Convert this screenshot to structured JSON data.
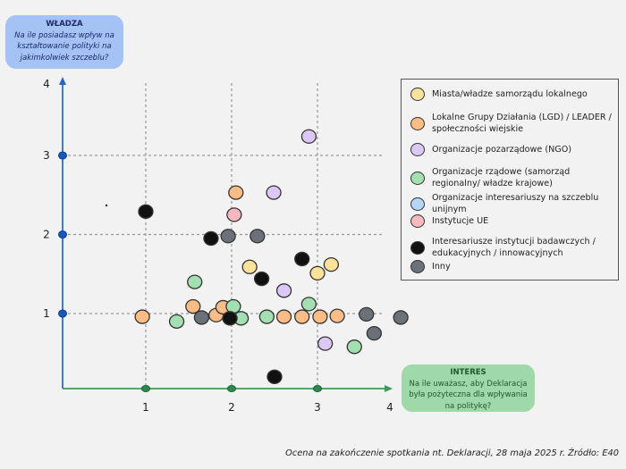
{
  "power_box": {
    "title": "WŁADZA",
    "question": "Na ile posiadasz wpływ na kształtowanie polityki na jakimkolwiek szczeblu?"
  },
  "interest_box": {
    "title": "INTERES",
    "question": "Na ile uważasz, aby Deklaracja była pożyteczna dla wpływania na politykę?"
  },
  "footer": "Ocena na zakończenie spotkania nt. Deklaracji, 28 maja 2025 r. Źródło: E40",
  "legend": [
    {
      "key": "miasta",
      "label": "Miasta/władze samorządu lokalnego",
      "color": "#ffe29a"
    },
    {
      "key": "lgd",
      "label": "Lokalne Grupy Działania (LGD) / LEADER / społeczności wiejskie",
      "color": "#fbbd85"
    },
    {
      "key": "ngo",
      "label": "Organizacje pozarządowe (NGO)",
      "color": "#dcc8f7"
    },
    {
      "key": "rzad",
      "label": "Organizacje rządowe (samorząd regionalny/ władze krajowe)",
      "color": "#a3dfb0"
    },
    {
      "key": "unijne",
      "label": "Organizacje interesariuszy na szczeblu unijnym",
      "color": "#b6d6f8"
    },
    {
      "key": "ue",
      "label": "Instytucje UE",
      "color": "#f7b8c0"
    },
    {
      "key": "badawcze",
      "label": "Interesariusze instytucji badawczych / edukacyjnych / innowacyjnych",
      "color": "#111111"
    },
    {
      "key": "inny",
      "label": "Inny",
      "color": "#6b7178"
    }
  ],
  "chart_data": {
    "type": "scatter",
    "title": "",
    "xlabel": "INTERES",
    "ylabel": "WŁADZA",
    "xlim": [
      0,
      4
    ],
    "ylim": [
      0,
      4
    ],
    "x_ticks": [
      "1",
      "2",
      "3",
      "4"
    ],
    "y_ticks": [
      "1",
      "2",
      "3",
      "4"
    ],
    "grid": "dashed at 1, 2, 3",
    "legend_position": "right",
    "axis_colors": {
      "x": "#3f9a57",
      "y": "#2e6fc2"
    },
    "points": [
      {
        "series": "miasta",
        "x": 2.21,
        "y": 1.59
      },
      {
        "series": "miasta",
        "x": 3.0,
        "y": 1.51
      },
      {
        "series": "miasta",
        "x": 3.16,
        "y": 1.62
      },
      {
        "series": "lgd",
        "x": 0.96,
        "y": 0.96
      },
      {
        "series": "lgd",
        "x": 2.05,
        "y": 2.53
      },
      {
        "series": "lgd",
        "x": 1.55,
        "y": 1.09
      },
      {
        "series": "lgd",
        "x": 1.82,
        "y": 0.98
      },
      {
        "series": "lgd",
        "x": 1.9,
        "y": 1.08
      },
      {
        "series": "lgd",
        "x": 2.61,
        "y": 0.96
      },
      {
        "series": "lgd",
        "x": 2.82,
        "y": 0.96
      },
      {
        "series": "lgd",
        "x": 3.03,
        "y": 0.96
      },
      {
        "series": "lgd",
        "x": 3.23,
        "y": 0.97
      },
      {
        "series": "ngo",
        "x": 2.9,
        "y": 3.24
      },
      {
        "series": "ngo",
        "x": 2.49,
        "y": 2.53
      },
      {
        "series": "ngo",
        "x": 2.61,
        "y": 1.29
      },
      {
        "series": "ngo",
        "x": 3.09,
        "y": 0.62
      },
      {
        "series": "rzad",
        "x": 1.36,
        "y": 0.9
      },
      {
        "series": "rzad",
        "x": 1.57,
        "y": 1.4
      },
      {
        "series": "rzad",
        "x": 2.02,
        "y": 1.09
      },
      {
        "series": "rzad",
        "x": 2.11,
        "y": 0.94
      },
      {
        "series": "rzad",
        "x": 2.41,
        "y": 0.96
      },
      {
        "series": "rzad",
        "x": 2.9,
        "y": 1.12
      },
      {
        "series": "rzad",
        "x": 3.43,
        "y": 0.58
      },
      {
        "series": "ue",
        "x": 2.03,
        "y": 2.25
      },
      {
        "series": "badawcze",
        "x": 1.0,
        "y": 2.29
      },
      {
        "series": "badawcze",
        "x": 1.76,
        "y": 1.95
      },
      {
        "series": "badawcze",
        "x": 1.98,
        "y": 0.94
      },
      {
        "series": "badawcze",
        "x": 2.35,
        "y": 1.44
      },
      {
        "series": "badawcze",
        "x": 2.82,
        "y": 1.69
      },
      {
        "series": "badawcze",
        "x": 2.5,
        "y": 0.2
      },
      {
        "series": "inny",
        "x": 1.65,
        "y": 0.95
      },
      {
        "series": "inny",
        "x": 1.96,
        "y": 1.98
      },
      {
        "series": "inny",
        "x": 2.3,
        "y": 1.98
      },
      {
        "series": "inny",
        "x": 3.57,
        "y": 0.99
      },
      {
        "series": "inny",
        "x": 3.66,
        "y": 0.75
      },
      {
        "series": "inny",
        "x": 3.97,
        "y": 0.95
      }
    ]
  }
}
